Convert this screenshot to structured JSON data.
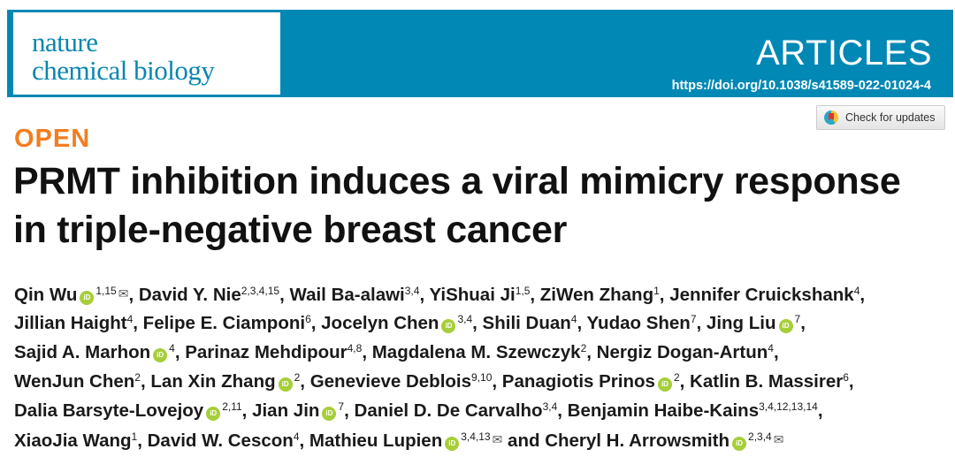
{
  "header": {
    "journal_line1": "nature",
    "journal_line2": "chemical biology",
    "article_type": "ARTICLES",
    "doi": "https://doi.org/10.1038/s41589-022-01024-4",
    "brand_color": "#0288b4"
  },
  "check_updates_label": "Check for updates",
  "open_label": "OPEN",
  "title_lines": [
    "PRMT inhibition induces a viral mimicry response",
    "in triple-negative breast cancer"
  ],
  "orcid_label": "iD",
  "email_icon": "✉",
  "author_lines": [
    [
      {
        "name": "Qin Wu",
        "orcid": true,
        "sup": "1,15",
        "email": true,
        "sep": ", "
      },
      {
        "name": "David Y. Nie",
        "sup": "2,3,4,15",
        "sep": ", "
      },
      {
        "name": "Wail Ba-alawi",
        "sup": "3,4",
        "sep": ", "
      },
      {
        "name": "YiShuai Ji",
        "sup": "1,5",
        "sep": ", "
      },
      {
        "name": "ZiWen Zhang",
        "sup": "1",
        "sep": ", "
      },
      {
        "name": "Jennifer Cruickshank",
        "sup": "4",
        "sep": ","
      }
    ],
    [
      {
        "name": "Jillian Haight",
        "sup": "4",
        "sep": ", "
      },
      {
        "name": "Felipe E. Ciamponi",
        "sup": "6",
        "sep": ", "
      },
      {
        "name": "Jocelyn Chen",
        "orcid": true,
        "sup": "3,4",
        "sep": ", "
      },
      {
        "name": "Shili Duan",
        "sup": "4",
        "sep": ", "
      },
      {
        "name": "Yudao Shen",
        "sup": "7",
        "sep": ", "
      },
      {
        "name": "Jing Liu",
        "orcid": true,
        "sup": "7",
        "sep": ","
      }
    ],
    [
      {
        "name": "Sajid A. Marhon",
        "orcid": true,
        "sup": "4",
        "sep": ", "
      },
      {
        "name": "Parinaz Mehdipour",
        "sup": "4,8",
        "sep": ", "
      },
      {
        "name": "Magdalena M. Szewczyk",
        "sup": "2",
        "sep": ", "
      },
      {
        "name": "Nergiz Dogan-Artun",
        "sup": "4",
        "sep": ","
      }
    ],
    [
      {
        "name": "WenJun Chen",
        "sup": "2",
        "sep": ", "
      },
      {
        "name": "Lan Xin Zhang",
        "orcid": true,
        "sup": "2",
        "sep": ", "
      },
      {
        "name": "Genevieve Deblois",
        "sup": "9,10",
        "sep": ", "
      },
      {
        "name": "Panagiotis Prinos",
        "orcid": true,
        "sup": "2",
        "sep": ", "
      },
      {
        "name": "Katlin B. Massirer",
        "sup": "6",
        "sep": ","
      }
    ],
    [
      {
        "name": "Dalia Barsyte-Lovejoy",
        "orcid": true,
        "sup": "2,11",
        "sep": ", "
      },
      {
        "name": "Jian Jin",
        "orcid": true,
        "sup": "7",
        "sep": ", "
      },
      {
        "name": "Daniel D. De Carvalho",
        "sup": "3,4",
        "sep": ", "
      },
      {
        "name": "Benjamin Haibe-Kains",
        "sup": "3,4,12,13,14",
        "sep": ","
      }
    ],
    [
      {
        "name": "XiaoJia Wang",
        "sup": "1",
        "sep": ", "
      },
      {
        "name": "David W. Cescon",
        "sup": "4",
        "sep": ", "
      },
      {
        "name": "Mathieu Lupien",
        "orcid": true,
        "sup": "3,4,13",
        "email": true,
        "sep": " and "
      },
      {
        "name": "Cheryl H. Arrowsmith",
        "orcid": true,
        "sup": "2,3,4",
        "email": true,
        "sep": ""
      }
    ]
  ]
}
